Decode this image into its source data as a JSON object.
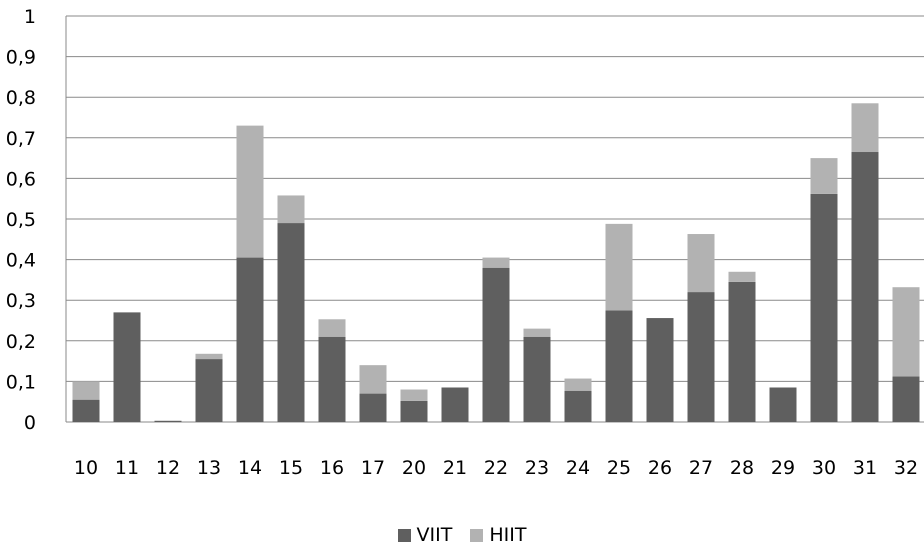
{
  "chart_data": {
    "type": "bar",
    "stacked": true,
    "categories": [
      "10",
      "11",
      "12",
      "13",
      "14",
      "15",
      "16",
      "17",
      "20",
      "21",
      "22",
      "23",
      "24",
      "25",
      "26",
      "27",
      "28",
      "29",
      "30",
      "31",
      "32"
    ],
    "series": [
      {
        "name": "VIIT",
        "color": "#5f5f5f",
        "values": [
          0.055,
          0.27,
          0.003,
          0.155,
          0.405,
          0.49,
          0.21,
          0.07,
          0.052,
          0.085,
          0.38,
          0.21,
          0.077,
          0.275,
          0.256,
          0.32,
          0.345,
          0.085,
          0.562,
          0.665,
          0.112
        ]
      },
      {
        "name": "HIIT",
        "color": "#b2b2b2",
        "values": [
          0.045,
          0.0,
          0.0,
          0.013,
          0.325,
          0.068,
          0.043,
          0.07,
          0.028,
          0.0,
          0.025,
          0.02,
          0.03,
          0.213,
          0.0,
          0.143,
          0.025,
          0.0,
          0.088,
          0.12,
          0.22
        ]
      }
    ],
    "ylim": [
      0,
      1
    ],
    "yticks": [
      "0",
      "0,1",
      "0,2",
      "0,3",
      "0,4",
      "0,5",
      "0,6",
      "0,7",
      "0,8",
      "0,9",
      "1"
    ],
    "grid": true,
    "legend_position": "bottom"
  }
}
